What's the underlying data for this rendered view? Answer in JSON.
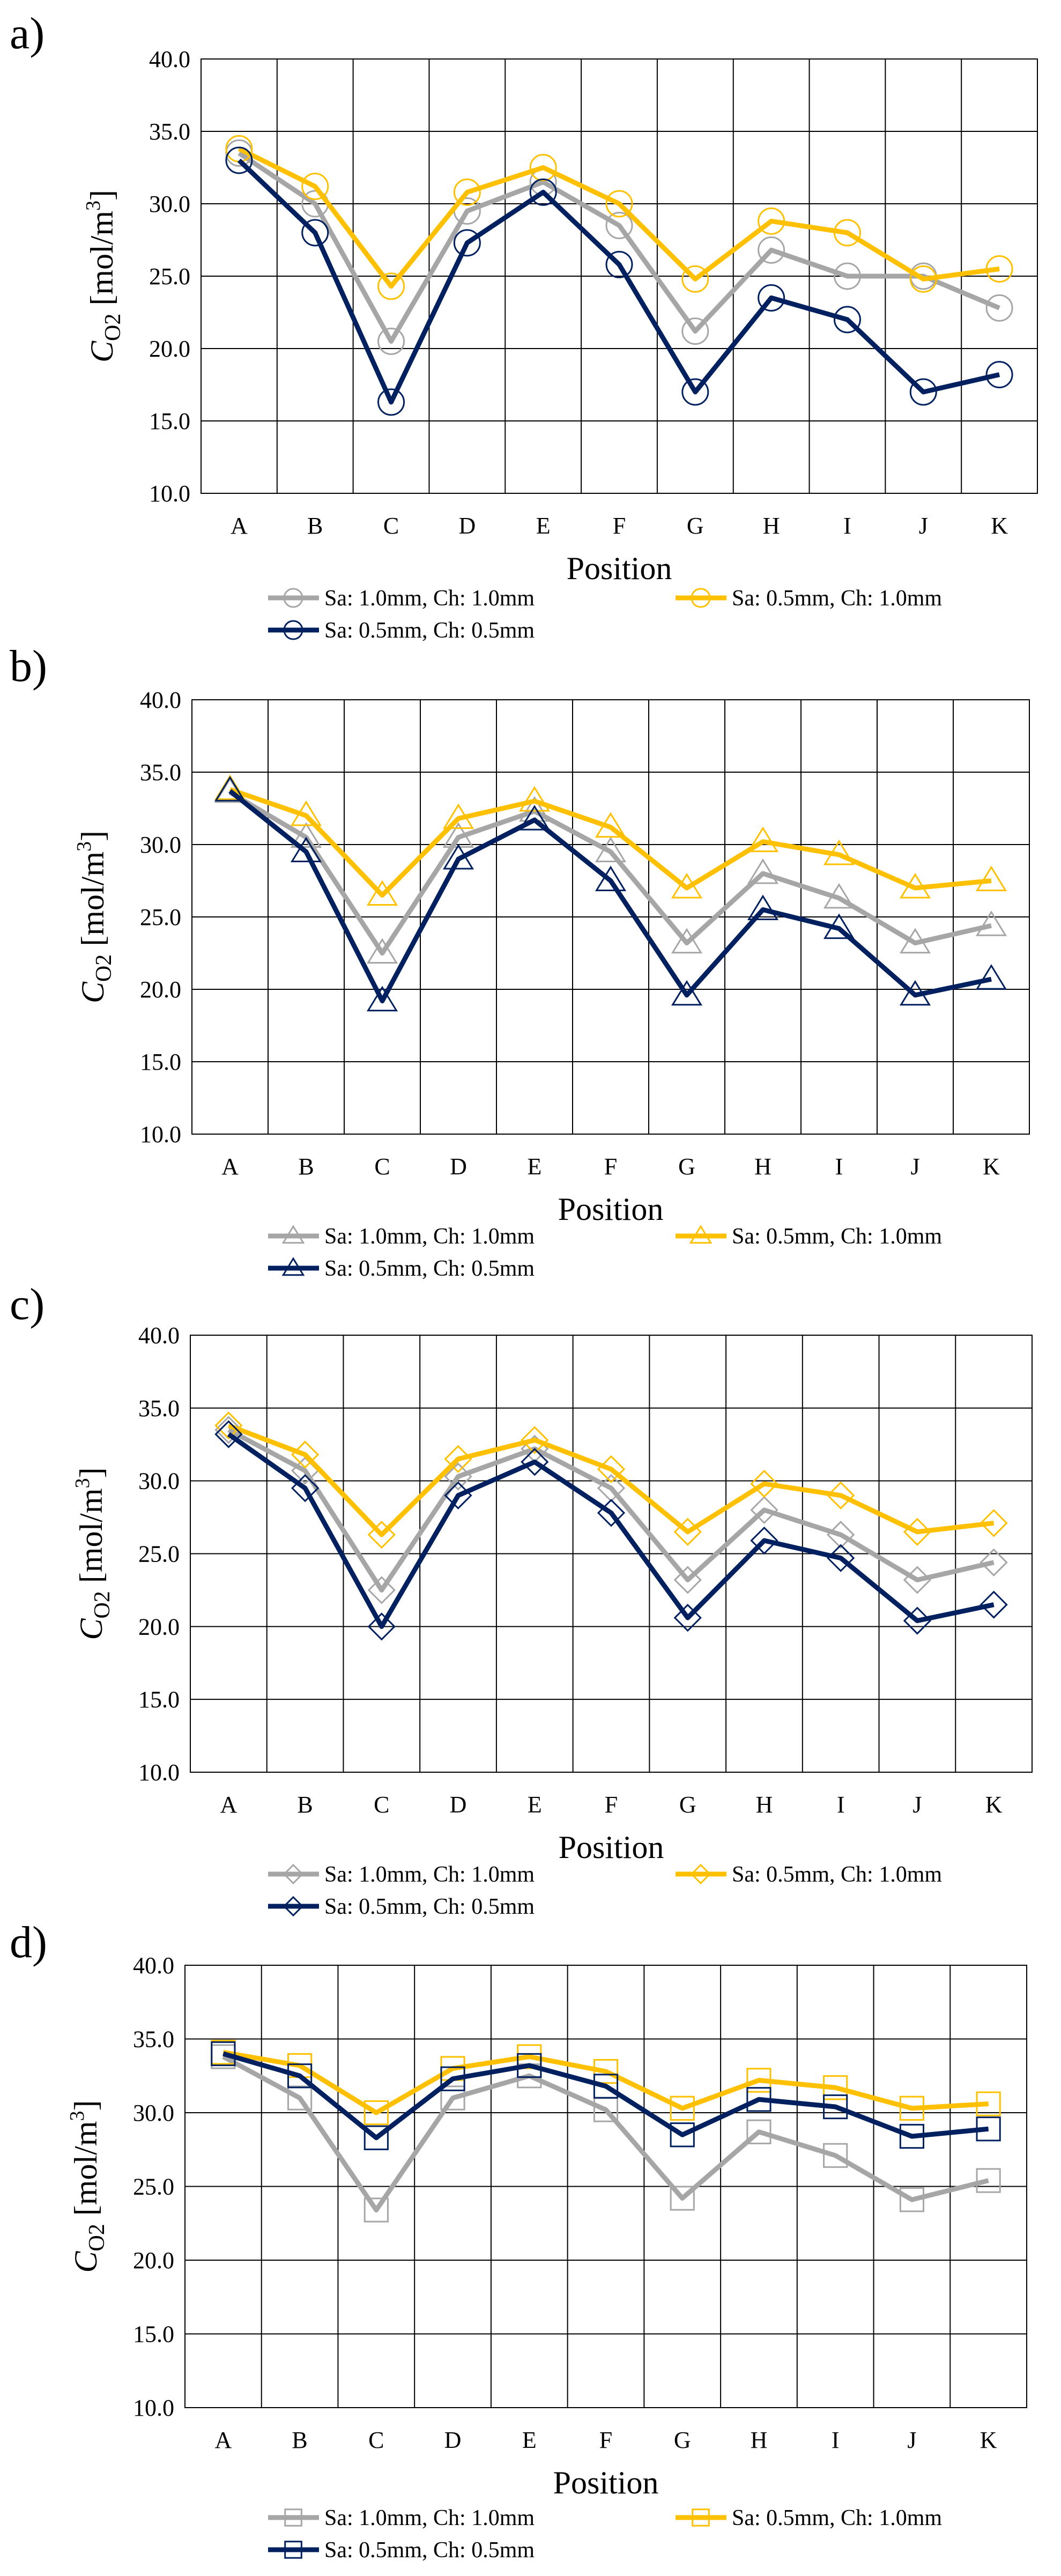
{
  "chart_data": [
    {
      "panel": "a)",
      "type": "line",
      "marker": "circle",
      "categories": [
        "A",
        "B",
        "C",
        "D",
        "E",
        "F",
        "G",
        "H",
        "I",
        "J",
        "K"
      ],
      "xlabel": "Position",
      "ylabel_main": "C",
      "ylabel_sub": "O2",
      "ylabel_unit": " [mol/m",
      "ylabel_sup": "3",
      "ylabel_end": "]",
      "ylim": [
        10.0,
        40.0
      ],
      "yticks": [
        "10.0",
        "15.0",
        "20.0",
        "25.0",
        "30.0",
        "35.0",
        "40.0"
      ],
      "grid": true,
      "legend_position": "bottom",
      "series": [
        {
          "name": "Sa: 1.0mm,  Ch:  1.0mm",
          "color": "#a6a6a6",
          "values": [
            33.5,
            30.0,
            20.5,
            29.5,
            31.5,
            28.5,
            21.2,
            26.8,
            25.0,
            25.0,
            22.8
          ]
        },
        {
          "name": "Sa: 0.5mm,  Ch:  1.0mm",
          "color": "#ffc000",
          "values": [
            33.8,
            31.2,
            24.3,
            30.8,
            32.5,
            30.0,
            24.8,
            28.8,
            28.0,
            24.8,
            25.5
          ]
        },
        {
          "name": "Sa: 0.5mm,  Ch:  0.5mm",
          "color": "#002060",
          "values": [
            33.0,
            28.0,
            16.3,
            27.3,
            30.8,
            25.8,
            17.0,
            23.5,
            22.0,
            17.0,
            18.2
          ]
        }
      ]
    },
    {
      "panel": "b)",
      "type": "line",
      "marker": "triangle",
      "categories": [
        "A",
        "B",
        "C",
        "D",
        "E",
        "F",
        "G",
        "H",
        "I",
        "J",
        "K"
      ],
      "xlabel": "Position",
      "ylabel_main": "C",
      "ylabel_sub": "O2",
      "ylabel_unit": " [mol/m",
      "ylabel_sup": "3",
      "ylabel_end": "]",
      "ylim": [
        10.0,
        40.0
      ],
      "yticks": [
        "10.0",
        "15.0",
        "20.0",
        "25.0",
        "30.0",
        "35.0",
        "40.0"
      ],
      "grid": true,
      "legend_position": "bottom",
      "series": [
        {
          "name": "Sa: 1.0mm,  Ch:  1.0mm",
          "color": "#a6a6a6",
          "values": [
            33.6,
            30.5,
            22.5,
            30.5,
            32.3,
            29.5,
            23.2,
            28.0,
            26.3,
            23.2,
            24.4
          ]
        },
        {
          "name": "Sa: 0.5mm,  Ch:  1.0mm",
          "color": "#ffc000",
          "values": [
            33.8,
            32.0,
            26.5,
            31.8,
            33.0,
            31.2,
            27.0,
            30.2,
            29.3,
            27.0,
            27.5
          ]
        },
        {
          "name": "Sa: 0.5mm,  Ch:  0.5mm",
          "color": "#002060",
          "values": [
            33.7,
            29.5,
            19.2,
            29.0,
            31.7,
            27.5,
            19.6,
            25.5,
            24.2,
            19.6,
            20.7
          ]
        }
      ]
    },
    {
      "panel": "c)",
      "type": "line",
      "marker": "diamond",
      "categories": [
        "A",
        "B",
        "C",
        "D",
        "E",
        "F",
        "G",
        "H",
        "I",
        "J",
        "K"
      ],
      "xlabel": "Position",
      "ylabel_main": "C",
      "ylabel_sub": "O2",
      "ylabel_unit": " [mol/m",
      "ylabel_sup": "3",
      "ylabel_end": "]",
      "ylim": [
        10.0,
        40.0
      ],
      "yticks": [
        "10.0",
        "15.0",
        "20.0",
        "25.0",
        "30.0",
        "35.0",
        "40.0"
      ],
      "grid": true,
      "legend_position": "bottom",
      "series": [
        {
          "name": "Sa: 1.0mm,  Ch:  1.0mm",
          "color": "#a6a6a6",
          "values": [
            33.5,
            30.7,
            22.5,
            30.3,
            32.2,
            29.5,
            23.2,
            28.0,
            26.3,
            23.2,
            24.4
          ]
        },
        {
          "name": "Sa: 0.5mm,  Ch:  1.0mm",
          "color": "#ffc000",
          "values": [
            33.8,
            31.8,
            26.3,
            31.5,
            32.8,
            30.8,
            26.5,
            29.8,
            29.0,
            26.5,
            27.1
          ]
        },
        {
          "name": "Sa: 0.5mm,  Ch:  0.5mm",
          "color": "#002060",
          "values": [
            33.2,
            29.5,
            20.0,
            29.0,
            31.3,
            27.8,
            20.6,
            25.9,
            24.7,
            20.4,
            21.5
          ]
        }
      ]
    },
    {
      "panel": "d)",
      "type": "line",
      "marker": "square",
      "categories": [
        "A",
        "B",
        "C",
        "D",
        "E",
        "F",
        "G",
        "H",
        "I",
        "J",
        "K"
      ],
      "xlabel": "Position",
      "ylabel_main": "C",
      "ylabel_sub": "O2",
      "ylabel_unit": " [mol/m",
      "ylabel_sup": "3",
      "ylabel_end": "]",
      "ylim": [
        10.0,
        40.0
      ],
      "yticks": [
        "10.0",
        "15.0",
        "20.0",
        "25.0",
        "30.0",
        "35.0",
        "40.0"
      ],
      "grid": true,
      "legend_position": "bottom",
      "series": [
        {
          "name": "Sa: 1.0mm,  Ch:  1.0mm",
          "color": "#a6a6a6",
          "values": [
            33.8,
            31.0,
            23.4,
            31.0,
            32.5,
            30.2,
            24.2,
            28.7,
            27.1,
            24.1,
            25.4
          ]
        },
        {
          "name": "Sa: 0.5mm,  Ch:  1.0mm",
          "color": "#ffc000",
          "values": [
            34.1,
            33.2,
            30.0,
            33.0,
            33.8,
            32.8,
            30.3,
            32.2,
            31.7,
            30.3,
            30.6
          ]
        },
        {
          "name": "Sa: 0.5mm,  Ch:  0.5mm",
          "color": "#002060",
          "values": [
            34.0,
            32.5,
            28.3,
            32.3,
            33.2,
            31.8,
            28.5,
            30.9,
            30.4,
            28.4,
            28.9
          ]
        }
      ]
    }
  ]
}
